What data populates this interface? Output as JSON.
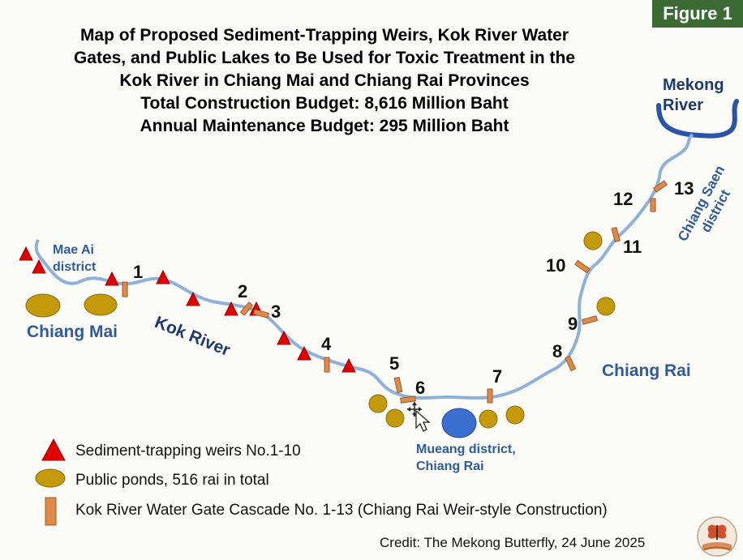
{
  "figure_label": "Figure 1",
  "title_lines": [
    "Map of Proposed Sediment-Trapping Weirs, Kok River Water",
    "Gates, and Public Lakes to Be Used for Toxic Treatment in the",
    "Kok River in Chiang Mai and Chiang Rai Provinces",
    "Total Construction Budget: 8,616 Million Baht",
    "Annual Maintenance Budget: 295 Million Baht"
  ],
  "places": {
    "mekong_line1": "Mekong",
    "mekong_line2": "River",
    "mae_ai_line1": "Mae Ai",
    "mae_ai_line2": "district",
    "chiang_mai": "Chiang Mai",
    "kok_river": "Kok River",
    "chiang_rai": "Chiang Rai",
    "mueang_line1": "Mueang district,",
    "mueang_line2": "Chiang Rai",
    "chiang_saen_line1": "Chiang Saen",
    "chiang_saen_line2": "district"
  },
  "gate_numbers": [
    "1",
    "2",
    "3",
    "4",
    "5",
    "6",
    "7",
    "8",
    "9",
    "10",
    "11",
    "12",
    "13"
  ],
  "legend": {
    "weirs": "Sediment-trapping weirs No.1-10",
    "ponds": "Public ponds, 516 rai in total",
    "gates": "Kok River Water Gate Cascade No. 1-13 (Chiang Rai Weir-style Construction)"
  },
  "credit": "Credit: The Mekong Butterfly, 24 June 2025",
  "colors": {
    "badge": "#3c6a33",
    "river": "#8fb0d8",
    "mekong": "#2b54a8",
    "weir": "#e00000",
    "pond": "#c49a0c",
    "lake": "#3a6fd0",
    "gate": "#e08a4a",
    "label_blue": "#2f5b9a"
  }
}
